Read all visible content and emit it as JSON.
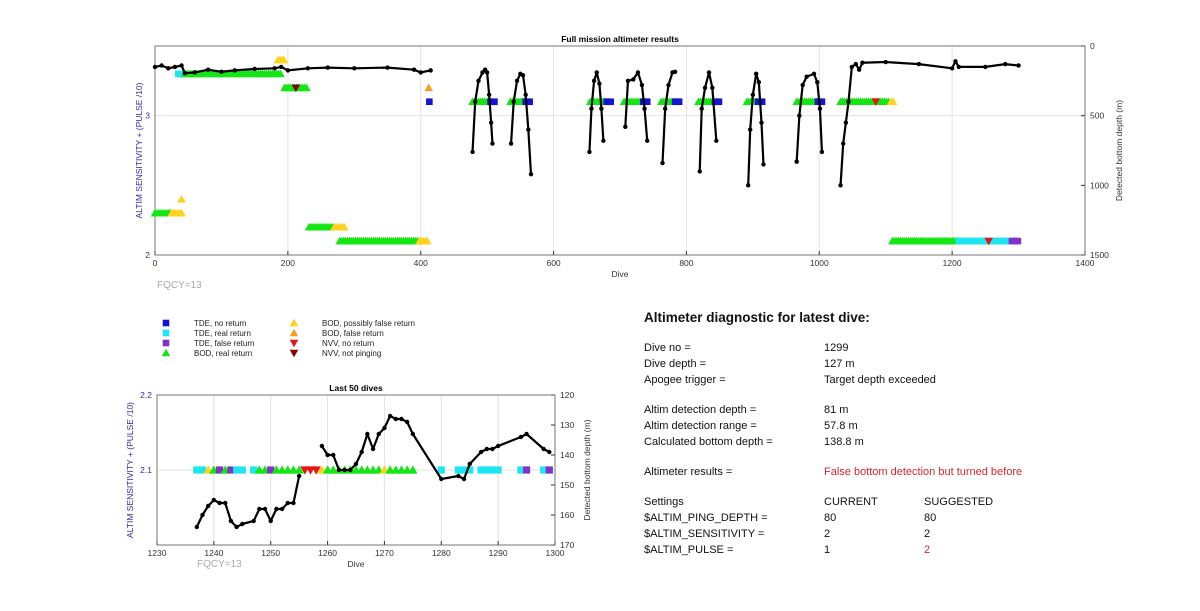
{
  "colors": {
    "tde_no": "#1414d2",
    "tde_real": "#1ee6f0",
    "tde_false": "#8232c8",
    "bod_real": "#14e614",
    "bod_possible": "#ffd21e",
    "bod_false": "#f5a01e",
    "nvv_no": "#e61414",
    "nvv_noping": "#820000",
    "depth": "#000000",
    "axis_left": "#2a2aa8"
  },
  "legend": [
    {
      "key": "tde_no",
      "shape": "square",
      "label": "TDE, no return"
    },
    {
      "key": "tde_real",
      "shape": "square",
      "label": "TDE, real return"
    },
    {
      "key": "tde_false",
      "shape": "square",
      "label": "TDE, false return"
    },
    {
      "key": "bod_real",
      "shape": "up",
      "label": "BOD, real return"
    },
    {
      "key": "bod_possible",
      "shape": "up",
      "label": "BOD, possibly false return"
    },
    {
      "key": "bod_false",
      "shape": "up",
      "label": "BOD, false return"
    },
    {
      "key": "nvv_no",
      "shape": "down",
      "label": "NVV, no return"
    },
    {
      "key": "nvv_noping",
      "shape": "down",
      "label": "NVV, not pinging"
    }
  ],
  "chart_data": [
    {
      "type": "scatter",
      "title": "Full mission altimeter results",
      "xlabel": "Dive",
      "ylabel": "ALTIM SENSITIVITY + (PULSE /10)",
      "y2label": "Detected bottom depth (m)",
      "xlim": [
        0,
        1400
      ],
      "ylim": [
        2,
        3.5
      ],
      "y2lim": [
        0,
        1500
      ],
      "xticks": [
        0,
        200,
        400,
        600,
        800,
        1000,
        1200,
        1400
      ],
      "yticks": [
        2,
        3
      ],
      "y2ticks": [
        0,
        500,
        1000,
        1500
      ],
      "annotation": "FQCY=13",
      "marker_segments": [
        {
          "key": "tde_real",
          "level": 3.3,
          "from": 35,
          "to": 45
        },
        {
          "key": "bod_real",
          "level": 3.3,
          "from": 45,
          "to": 190
        },
        {
          "key": "bod_possible",
          "level": 3.4,
          "from": 185,
          "to": 195
        },
        {
          "key": "bod_real",
          "level": 3.2,
          "from": 195,
          "to": 230
        },
        {
          "key": "nvv_noping",
          "level": 3.2,
          "from": 212,
          "to": 212
        },
        {
          "key": "bod_false",
          "level": 3.2,
          "from": 412,
          "to": 412
        },
        {
          "key": "tde_no",
          "level": 3.1,
          "from": 413,
          "to": 413
        },
        {
          "key": "bod_real",
          "level": 3.1,
          "from": 478,
          "to": 505
        },
        {
          "key": "tde_no",
          "level": 3.1,
          "from": 505,
          "to": 512
        },
        {
          "key": "bod_real",
          "level": 3.1,
          "from": 535,
          "to": 558
        },
        {
          "key": "tde_no",
          "level": 3.1,
          "from": 558,
          "to": 565
        },
        {
          "key": "bod_real",
          "level": 3.1,
          "from": 655,
          "to": 680
        },
        {
          "key": "tde_no",
          "level": 3.1,
          "from": 680,
          "to": 688
        },
        {
          "key": "bod_real",
          "level": 3.1,
          "from": 706,
          "to": 735
        },
        {
          "key": "tde_no",
          "level": 3.1,
          "from": 735,
          "to": 742
        },
        {
          "key": "bod_real",
          "level": 3.1,
          "from": 762,
          "to": 783
        },
        {
          "key": "tde_no",
          "level": 3.1,
          "from": 783,
          "to": 790
        },
        {
          "key": "bod_real",
          "level": 3.1,
          "from": 818,
          "to": 843
        },
        {
          "key": "tde_no",
          "level": 3.1,
          "from": 843,
          "to": 850
        },
        {
          "key": "bod_real",
          "level": 3.1,
          "from": 891,
          "to": 908
        },
        {
          "key": "tde_no",
          "level": 3.1,
          "from": 908,
          "to": 915
        },
        {
          "key": "bod_real",
          "level": 3.1,
          "from": 966,
          "to": 998
        },
        {
          "key": "tde_no",
          "level": 3.1,
          "from": 998,
          "to": 1005
        },
        {
          "key": "bod_real",
          "level": 3.1,
          "from": 1032,
          "to": 1105
        },
        {
          "key": "nvv_no",
          "level": 3.1,
          "from": 1085,
          "to": 1085
        },
        {
          "key": "bod_possible",
          "level": 3.1,
          "from": 1108,
          "to": 1112
        },
        {
          "key": "bod_possible",
          "level": 2.4,
          "from": 40,
          "to": 40
        },
        {
          "key": "bod_real",
          "level": 2.3,
          "from": 0,
          "to": 25
        },
        {
          "key": "bod_possible",
          "level": 2.3,
          "from": 25,
          "to": 40
        },
        {
          "key": "bod_real",
          "level": 2.2,
          "from": 232,
          "to": 270
        },
        {
          "key": "bod_possible",
          "level": 2.2,
          "from": 270,
          "to": 285
        },
        {
          "key": "bod_real",
          "level": 2.1,
          "from": 278,
          "to": 398
        },
        {
          "key": "bod_possible",
          "level": 2.1,
          "from": 398,
          "to": 412
        },
        {
          "key": "bod_real",
          "level": 2.1,
          "from": 1110,
          "to": 1210
        },
        {
          "key": "tde_real",
          "level": 2.1,
          "from": 1210,
          "to": 1285
        },
        {
          "key": "nvv_no",
          "level": 2.1,
          "from": 1255,
          "to": 1255
        },
        {
          "key": "tde_false",
          "level": 2.1,
          "from": 1290,
          "to": 1300
        }
      ],
      "depth_series": [
        [
          [
            0,
            150
          ],
          [
            10,
            140
          ],
          [
            20,
            160
          ],
          [
            30,
            150
          ],
          [
            40,
            140
          ],
          [
            45,
            195
          ],
          [
            60,
            190
          ],
          [
            80,
            170
          ],
          [
            100,
            185
          ],
          [
            120,
            175
          ],
          [
            150,
            165
          ],
          [
            180,
            160
          ],
          [
            190,
            150
          ],
          [
            200,
            175
          ],
          [
            230,
            160
          ],
          [
            260,
            155
          ],
          [
            300,
            160
          ],
          [
            350,
            155
          ],
          [
            390,
            170
          ],
          [
            400,
            190
          ],
          [
            415,
            175
          ]
        ],
        [
          [
            478,
            760
          ],
          [
            482,
            400
          ],
          [
            487,
            250
          ],
          [
            493,
            190
          ],
          [
            497,
            170
          ],
          [
            500,
            190
          ],
          [
            503,
            350
          ],
          [
            506,
            550
          ],
          [
            508,
            700
          ]
        ],
        [
          [
            536,
            700
          ],
          [
            540,
            400
          ],
          [
            545,
            250
          ],
          [
            550,
            200
          ],
          [
            554,
            210
          ],
          [
            558,
            350
          ],
          [
            562,
            600
          ],
          [
            566,
            920
          ]
        ],
        [
          [
            654,
            760
          ],
          [
            657,
            450
          ],
          [
            661,
            250
          ],
          [
            665,
            190
          ],
          [
            669,
            270
          ],
          [
            672,
            450
          ],
          [
            675,
            680
          ]
        ],
        [
          [
            708,
            580
          ],
          [
            712,
            250
          ],
          [
            720,
            240
          ],
          [
            727,
            190
          ],
          [
            733,
            280
          ],
          [
            737,
            450
          ],
          [
            741,
            680
          ]
        ],
        [
          [
            764,
            840
          ],
          [
            768,
            450
          ],
          [
            773,
            280
          ],
          [
            779,
            190
          ],
          [
            783,
            185
          ]
        ],
        [
          [
            820,
            900
          ],
          [
            823,
            450
          ],
          [
            828,
            300
          ],
          [
            834,
            190
          ],
          [
            839,
            300
          ],
          [
            845,
            680
          ]
        ],
        [
          [
            893,
            1000
          ],
          [
            896,
            600
          ],
          [
            900,
            350
          ],
          [
            905,
            200
          ],
          [
            909,
            260
          ],
          [
            913,
            550
          ],
          [
            916,
            850
          ]
        ],
        [
          [
            966,
            830
          ],
          [
            970,
            500
          ],
          [
            975,
            280
          ],
          [
            981,
            220
          ],
          [
            992,
            200
          ],
          [
            997,
            260
          ],
          [
            1001,
            450
          ],
          [
            1004,
            760
          ]
        ],
        [
          [
            1032,
            1000
          ],
          [
            1036,
            700
          ],
          [
            1040,
            550
          ],
          [
            1044,
            400
          ],
          [
            1049,
            150
          ],
          [
            1055,
            130
          ],
          [
            1060,
            170
          ],
          [
            1065,
            120
          ],
          [
            1100,
            115
          ],
          [
            1150,
            130
          ],
          [
            1200,
            160
          ],
          [
            1205,
            110
          ],
          [
            1210,
            150
          ],
          [
            1250,
            150
          ],
          [
            1280,
            130
          ],
          [
            1300,
            140
          ]
        ]
      ]
    },
    {
      "type": "scatter",
      "title": "Last 50 dives",
      "xlabel": "Dive",
      "ylabel": "ALTIM SENSITIVITY + (PULSE /10)",
      "y2label": "Detected bottom depth (m)",
      "xlim": [
        1230,
        1300
      ],
      "ylim": [
        2.0,
        2.2
      ],
      "y2lim": [
        120,
        170
      ],
      "xticks": [
        1230,
        1240,
        1250,
        1260,
        1270,
        1280,
        1290,
        1300
      ],
      "yticks": [
        2.1,
        2.2
      ],
      "y2ticks": [
        120,
        130,
        140,
        150,
        160,
        170
      ],
      "annotation": "FQCY=13",
      "markers": [
        [
          1237,
          "tde_real"
        ],
        [
          1238,
          "tde_real"
        ],
        [
          1239,
          "bod_possible"
        ],
        [
          1240,
          "bod_real"
        ],
        [
          1241,
          "tde_false"
        ],
        [
          1242,
          "bod_real"
        ],
        [
          1243,
          "tde_false"
        ],
        [
          1244,
          "tde_real"
        ],
        [
          1245,
          "tde_real"
        ],
        [
          1247,
          "tde_real"
        ],
        [
          1248,
          "bod_real"
        ],
        [
          1249,
          "bod_real"
        ],
        [
          1250,
          "tde_false"
        ],
        [
          1251,
          "bod_real"
        ],
        [
          1252,
          "bod_real"
        ],
        [
          1253,
          "bod_real"
        ],
        [
          1254,
          "bod_real"
        ],
        [
          1255,
          "bod_real"
        ],
        [
          1256,
          "nvv_no"
        ],
        [
          1257,
          "nvv_no"
        ],
        [
          1258,
          "nvv_no"
        ],
        [
          1259,
          "bod_possible"
        ],
        [
          1260,
          "bod_real"
        ],
        [
          1261,
          "bod_real"
        ],
        [
          1262,
          "bod_real"
        ],
        [
          1263,
          "bod_real"
        ],
        [
          1264,
          "bod_real"
        ],
        [
          1265,
          "bod_real"
        ],
        [
          1266,
          "bod_real"
        ],
        [
          1267,
          "bod_real"
        ],
        [
          1268,
          "bod_real"
        ],
        [
          1269,
          "bod_real"
        ],
        [
          1270,
          "bod_possible"
        ],
        [
          1271,
          "bod_real"
        ],
        [
          1272,
          "bod_real"
        ],
        [
          1273,
          "bod_real"
        ],
        [
          1274,
          "bod_real"
        ],
        [
          1275,
          "bod_real"
        ],
        [
          1280,
          "tde_real"
        ],
        [
          1283,
          "tde_real"
        ],
        [
          1284,
          "tde_real"
        ],
        [
          1285,
          "tde_real"
        ],
        [
          1287,
          "tde_real"
        ],
        [
          1288,
          "tde_real"
        ],
        [
          1289,
          "tde_real"
        ],
        [
          1290,
          "tde_real"
        ],
        [
          1294,
          "tde_real"
        ],
        [
          1295,
          "tde_false"
        ],
        [
          1298,
          "tde_real"
        ],
        [
          1299,
          "tde_false"
        ]
      ],
      "marker_level": 2.1,
      "depth_series": [
        [
          [
            1237,
            164
          ],
          [
            1238,
            160
          ],
          [
            1239,
            157
          ],
          [
            1240,
            155
          ],
          [
            1241,
            156
          ],
          [
            1242,
            156
          ],
          [
            1243,
            162
          ],
          [
            1244,
            164
          ],
          [
            1245,
            163
          ],
          [
            1247,
            162
          ],
          [
            1248,
            158
          ],
          [
            1249,
            158
          ],
          [
            1250,
            162
          ],
          [
            1251,
            158
          ],
          [
            1252,
            158
          ],
          [
            1253,
            156
          ],
          [
            1254,
            156
          ],
          [
            1255,
            147
          ]
        ],
        [
          [
            1259,
            137
          ],
          [
            1260,
            140
          ],
          [
            1261,
            140
          ],
          [
            1262,
            145
          ],
          [
            1263,
            145
          ],
          [
            1264,
            145
          ],
          [
            1265,
            143
          ],
          [
            1266,
            139
          ],
          [
            1267,
            133
          ],
          [
            1268,
            138
          ],
          [
            1269,
            133
          ],
          [
            1270,
            131
          ],
          [
            1271,
            127
          ],
          [
            1272,
            128
          ],
          [
            1273,
            128
          ],
          [
            1274,
            129
          ],
          [
            1275,
            133
          ],
          [
            1280,
            148
          ],
          [
            1283,
            147
          ],
          [
            1284,
            148
          ],
          [
            1285,
            143
          ],
          [
            1287,
            139
          ],
          [
            1288,
            138
          ],
          [
            1289,
            138
          ],
          [
            1290,
            137
          ],
          [
            1294,
            134
          ],
          [
            1295,
            133
          ],
          [
            1298,
            138
          ],
          [
            1299,
            139
          ]
        ]
      ]
    }
  ],
  "diagnostic": {
    "title": "Altimeter diagnostic for latest dive:",
    "dive_no_label": "Dive no =",
    "dive_no": "1299",
    "dive_depth_label": "Dive depth =",
    "dive_depth": "127 m",
    "apogee_label": "Apogee trigger =",
    "apogee": "Target depth exceeded",
    "det_depth_label": "Altim detection depth =",
    "det_depth": "81 m",
    "det_range_label": "Altim detection range =",
    "det_range": "57.8 m",
    "calc_depth_label": "Calculated bottom depth =",
    "calc_depth": "138.8 m",
    "results_label": "Altimeter results =",
    "results": "False bottom detection but turned before",
    "settings_label": "Settings",
    "current_label": "CURRENT",
    "suggested_label": "SUGGESTED",
    "settings": [
      {
        "name": "$ALTIM_PING_DEPTH =",
        "current": "80",
        "suggested": "80"
      },
      {
        "name": "$ALTIM_SENSITIVITY =",
        "current": "2",
        "suggested": "2"
      },
      {
        "name": "$ALTIM_PULSE =",
        "current": "1",
        "suggested": "2"
      }
    ]
  }
}
